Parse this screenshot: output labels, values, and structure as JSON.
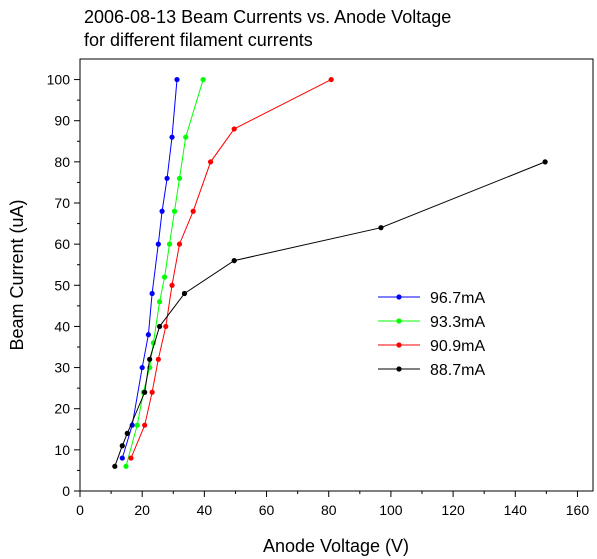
{
  "chart_data": {
    "type": "line",
    "title": [
      "2006-08-13 Beam Currents vs. Anode Voltage",
      "for different filament currents"
    ],
    "xlabel": "Anode Voltage (V)",
    "ylabel": "Beam Current (uA)",
    "xlim": [
      0,
      165
    ],
    "ylim": [
      0,
      105
    ],
    "xticks": [
      0,
      20,
      40,
      60,
      80,
      100,
      120,
      140,
      160
    ],
    "yticks": [
      0,
      10,
      20,
      30,
      40,
      50,
      60,
      70,
      80,
      90,
      100
    ],
    "legend_position": "middle-right",
    "grid": false,
    "series": [
      {
        "name": "96.7mA",
        "color": "#0000ff",
        "points": [
          [
            13.6,
            8
          ],
          [
            16.8,
            16
          ],
          [
            20,
            30
          ],
          [
            22,
            38
          ],
          [
            23.2,
            48
          ],
          [
            25.2,
            60
          ],
          [
            26.4,
            68
          ],
          [
            28,
            76
          ],
          [
            29.6,
            86
          ],
          [
            31.2,
            100
          ]
        ]
      },
      {
        "name": "93.3mA",
        "color": "#00ff00",
        "points": [
          [
            14.8,
            6
          ],
          [
            18.4,
            16
          ],
          [
            20.4,
            24
          ],
          [
            22.4,
            30
          ],
          [
            23.6,
            36
          ],
          [
            25.6,
            46
          ],
          [
            27.2,
            52
          ],
          [
            28.8,
            60
          ],
          [
            30.4,
            68
          ],
          [
            32,
            76
          ],
          [
            34,
            86
          ],
          [
            39.6,
            100
          ]
        ]
      },
      {
        "name": "90.9mA",
        "color": "#ff0000",
        "points": [
          [
            16.4,
            8
          ],
          [
            20.8,
            16
          ],
          [
            23.2,
            24
          ],
          [
            25.2,
            32
          ],
          [
            27.6,
            40
          ],
          [
            29.6,
            50
          ],
          [
            32,
            60
          ],
          [
            36.4,
            68
          ],
          [
            42,
            80
          ],
          [
            49.6,
            88
          ],
          [
            80.8,
            100
          ]
        ]
      },
      {
        "name": "88.7mA",
        "color": "#000000",
        "points": [
          [
            11.2,
            6
          ],
          [
            13.6,
            11
          ],
          [
            15.2,
            14
          ],
          [
            20.8,
            24
          ],
          [
            22.4,
            32
          ],
          [
            25.6,
            40
          ],
          [
            33.6,
            48
          ],
          [
            49.6,
            56
          ],
          [
            96.8,
            64
          ],
          [
            149.6,
            80
          ]
        ]
      }
    ]
  }
}
